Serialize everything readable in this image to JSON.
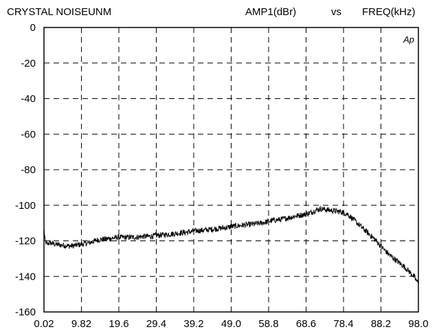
{
  "chart_data": {
    "type": "line",
    "title": "CRYSTAL  NOISEUNM",
    "ylabel": "AMP1(dBr)",
    "vs_label": "vs",
    "xlabel": "FREQ(kHz)",
    "logo": "Ap",
    "grid": true,
    "xlim": [
      0.02,
      98.0
    ],
    "ylim": [
      -160,
      0
    ],
    "x_ticks": [
      "0.02",
      "9.82",
      "19.6",
      "29.4",
      "39.2",
      "49.0",
      "58.8",
      "68.6",
      "78.4",
      "88.2",
      "98.0"
    ],
    "y_ticks": [
      "0",
      "-20",
      "-40",
      "-60",
      "-80",
      "-100",
      "-120",
      "-140",
      "-160"
    ],
    "series": [
      {
        "color": "#000000",
        "x": [
          0.02,
          0.3,
          0.8,
          1.5,
          3,
          5,
          7,
          9.82,
          12,
          14,
          16,
          18,
          19.6,
          22,
          24,
          26,
          28,
          29.4,
          32,
          34,
          36,
          38,
          39.2,
          42,
          44,
          46,
          48,
          49.0,
          51,
          53,
          55,
          57,
          58.8,
          60,
          62,
          64,
          66,
          68.6,
          70,
          71.5,
          72.5,
          74,
          75.5,
          77,
          78.4,
          79.5,
          80.5,
          81.5,
          82.5,
          84,
          85.5,
          87,
          88.2,
          89.5,
          91,
          92.5,
          94,
          95.5,
          97,
          97.6,
          98.0
        ],
        "y": [
          -113,
          -120,
          -122,
          -121,
          -122,
          -122.5,
          -123,
          -122,
          -121,
          -119.5,
          -119,
          -118.5,
          -118,
          -118,
          -118,
          -117.5,
          -117.5,
          -117,
          -116.5,
          -116,
          -115.5,
          -115,
          -114.5,
          -114,
          -113.5,
          -113,
          -112.5,
          -112,
          -111.5,
          -111,
          -110.5,
          -110,
          -109,
          -108.5,
          -108,
          -107,
          -106,
          -105,
          -104,
          -102.5,
          -102,
          -102.5,
          -103,
          -103.5,
          -104,
          -105,
          -107,
          -109,
          -111,
          -114,
          -117,
          -120,
          -123,
          -126,
          -129,
          -131.5,
          -134,
          -137,
          -140.5,
          -143,
          -143
        ]
      }
    ]
  }
}
